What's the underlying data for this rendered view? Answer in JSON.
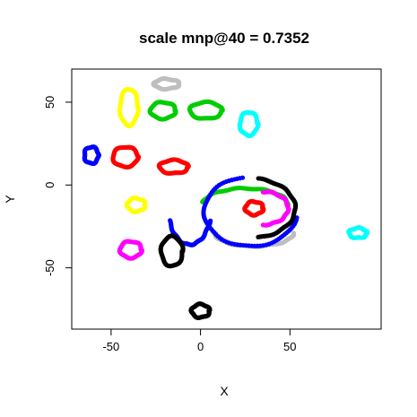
{
  "chart_data": {
    "type": "scatter",
    "title": "scale mnp@40 = 0.7352",
    "xlabel": "X",
    "ylabel": "Y",
    "xlim": [
      -72,
      101
    ],
    "ylim": [
      -87,
      70
    ],
    "xticks": [
      -50,
      0,
      50
    ],
    "yticks": [
      -50,
      0,
      50
    ],
    "grid": false,
    "legend": "none",
    "series": [
      {
        "color": "#ffff00",
        "shape": "ring",
        "cx": -40,
        "cy": 47,
        "rx": 5,
        "ry": 11
      },
      {
        "color": "#ffff00",
        "shape": "ring",
        "cx": -36,
        "cy": -12,
        "rx": 5,
        "ry": 4
      },
      {
        "color": "#bebebe",
        "shape": "ring",
        "cx": -19,
        "cy": 61,
        "rx": 7,
        "ry": 3
      },
      {
        "color": "#bebebe",
        "shape": "arc",
        "cx": 30,
        "cy": -29,
        "rx": 22,
        "ry": 8,
        "a0": 180,
        "a1": 360
      },
      {
        "color": "#00cd00",
        "shape": "ring",
        "cx": -21,
        "cy": 45,
        "rx": 7,
        "ry": 5
      },
      {
        "color": "#00cd00",
        "shape": "ring",
        "cx": 3,
        "cy": 45,
        "rx": 9,
        "ry": 5
      },
      {
        "color": "#00cd00",
        "shape": "arc",
        "cx": 25,
        "cy": -12,
        "rx": 24,
        "ry": 10,
        "a0": 0,
        "a1": 170
      },
      {
        "color": "#00ffff",
        "shape": "ring",
        "cx": 27,
        "cy": 37,
        "rx": 5,
        "ry": 7
      },
      {
        "color": "#00ffff",
        "shape": "ring",
        "cx": 88,
        "cy": -29,
        "rx": 5,
        "ry": 3
      },
      {
        "color": "#0000ff",
        "shape": "ring",
        "cx": -61,
        "cy": 18,
        "rx": 4,
        "ry": 5
      },
      {
        "color": "#0000ff",
        "shape": "arc",
        "cx": 28,
        "cy": -16,
        "rx": 26,
        "ry": 21,
        "a0": 100,
        "a1": 350
      },
      {
        "color": "#0000ff",
        "shape": "arc",
        "cx": -6,
        "cy": -14,
        "rx": 12,
        "ry": 22,
        "a0": 200,
        "a1": 340
      },
      {
        "color": "#ff0000",
        "shape": "ring",
        "cx": -42,
        "cy": 17,
        "rx": 7,
        "ry": 6
      },
      {
        "color": "#ff0000",
        "shape": "ring",
        "cx": -15,
        "cy": 11,
        "rx": 8,
        "ry": 4
      },
      {
        "color": "#ff0000",
        "shape": "ring",
        "cx": 30,
        "cy": -14,
        "rx": 5,
        "ry": 4
      },
      {
        "color": "#ff00ff",
        "shape": "ring",
        "cx": -39,
        "cy": -39,
        "rx": 6,
        "ry": 5
      },
      {
        "color": "#ff00ff",
        "shape": "arc",
        "cx": 35,
        "cy": -14,
        "rx": 14,
        "ry": 10,
        "a0": 270,
        "a1": 450
      },
      {
        "color": "#000000",
        "shape": "ring",
        "cx": -16,
        "cy": -40,
        "rx": 6,
        "ry": 9
      },
      {
        "color": "#000000",
        "shape": "ring",
        "cx": 0,
        "cy": -76,
        "rx": 5,
        "ry": 4
      },
      {
        "color": "#000000",
        "shape": "arc",
        "cx": 28,
        "cy": -14,
        "rx": 25,
        "ry": 18,
        "a0": 280,
        "a1": 440
      }
    ]
  }
}
